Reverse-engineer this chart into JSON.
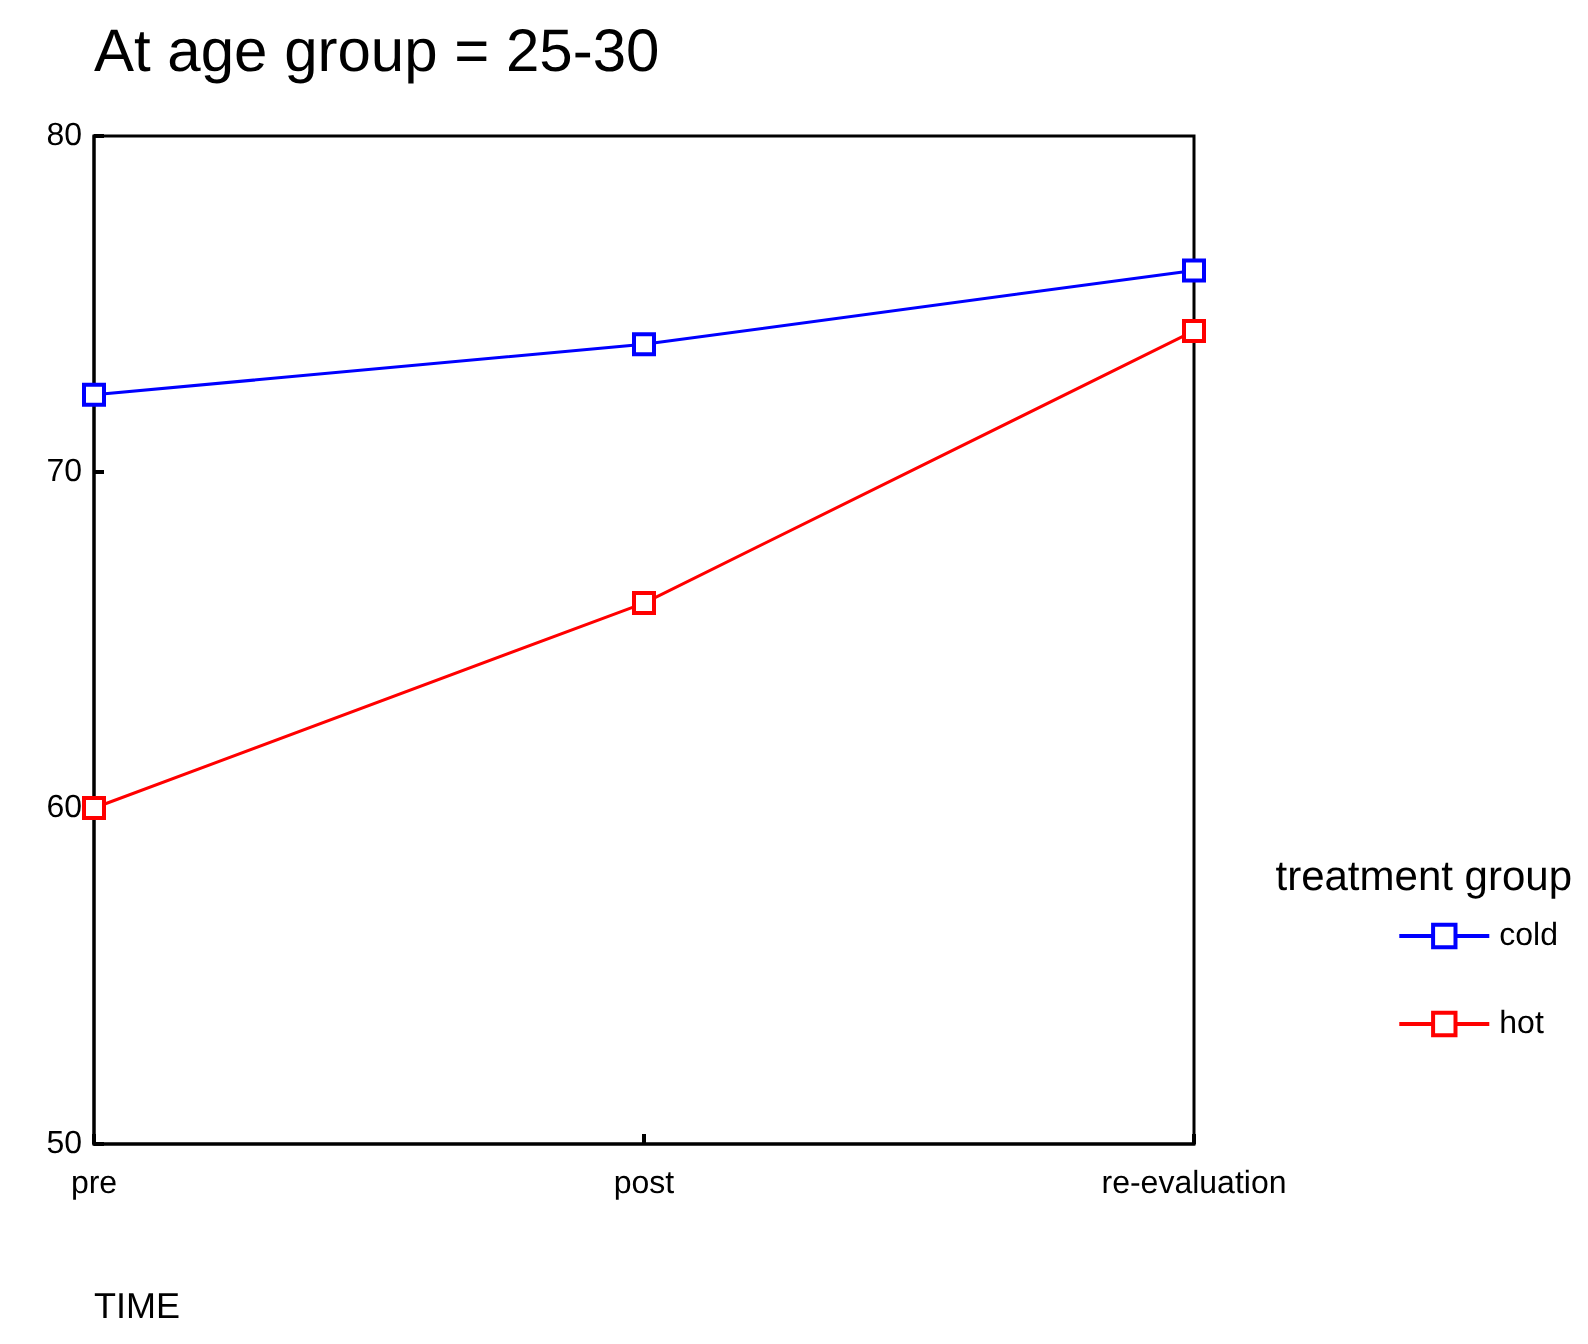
{
  "chart_data": {
    "type": "line",
    "title": "At age group = 25-30",
    "xlabel": "TIME",
    "legend_title": "treatment group",
    "categories": [
      "pre",
      "post",
      "re-evaluation"
    ],
    "series": [
      {
        "name": "cold",
        "color": "#0000ff",
        "values": [
          72.3,
          73.8,
          76.0
        ]
      },
      {
        "name": "hot",
        "color": "#ff0000",
        "values": [
          60.0,
          66.1,
          74.2
        ]
      }
    ],
    "ylim": [
      50,
      80
    ],
    "yticks": [
      50,
      60,
      70,
      80
    ],
    "grid": false,
    "legend": "right",
    "marker": "square",
    "line_style": "solid"
  }
}
